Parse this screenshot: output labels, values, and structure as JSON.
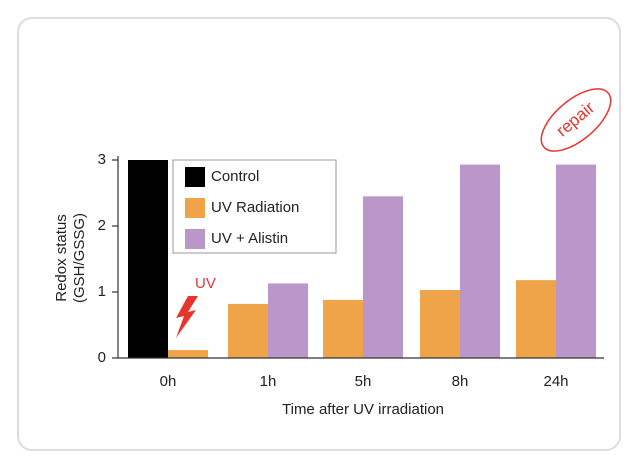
{
  "chart_data": {
    "type": "bar",
    "ylabel": [
      "Redox status",
      "(GSH/GSSG)"
    ],
    "xlabel": "Time after UV irradiation",
    "categories": [
      "0h",
      "1h",
      "5h",
      "8h",
      "24h"
    ],
    "series": [
      {
        "name": "Control",
        "color": "#000000",
        "values": [
          3.0,
          null,
          null,
          null,
          null
        ]
      },
      {
        "name": "UV Radiation",
        "color": "#f0a44a",
        "values": [
          0.12,
          0.82,
          0.88,
          1.03,
          1.18
        ]
      },
      {
        "name": "UV + Alistin",
        "color": "#bb96c9",
        "values": [
          null,
          1.13,
          2.45,
          2.93,
          2.93
        ]
      }
    ],
    "ylim": [
      0,
      3
    ],
    "yticks": [
      0,
      1,
      2,
      3
    ],
    "legend": "upper-left",
    "annotations": [
      "UV",
      "repair"
    ],
    "annotation_color": "#e8342c"
  }
}
